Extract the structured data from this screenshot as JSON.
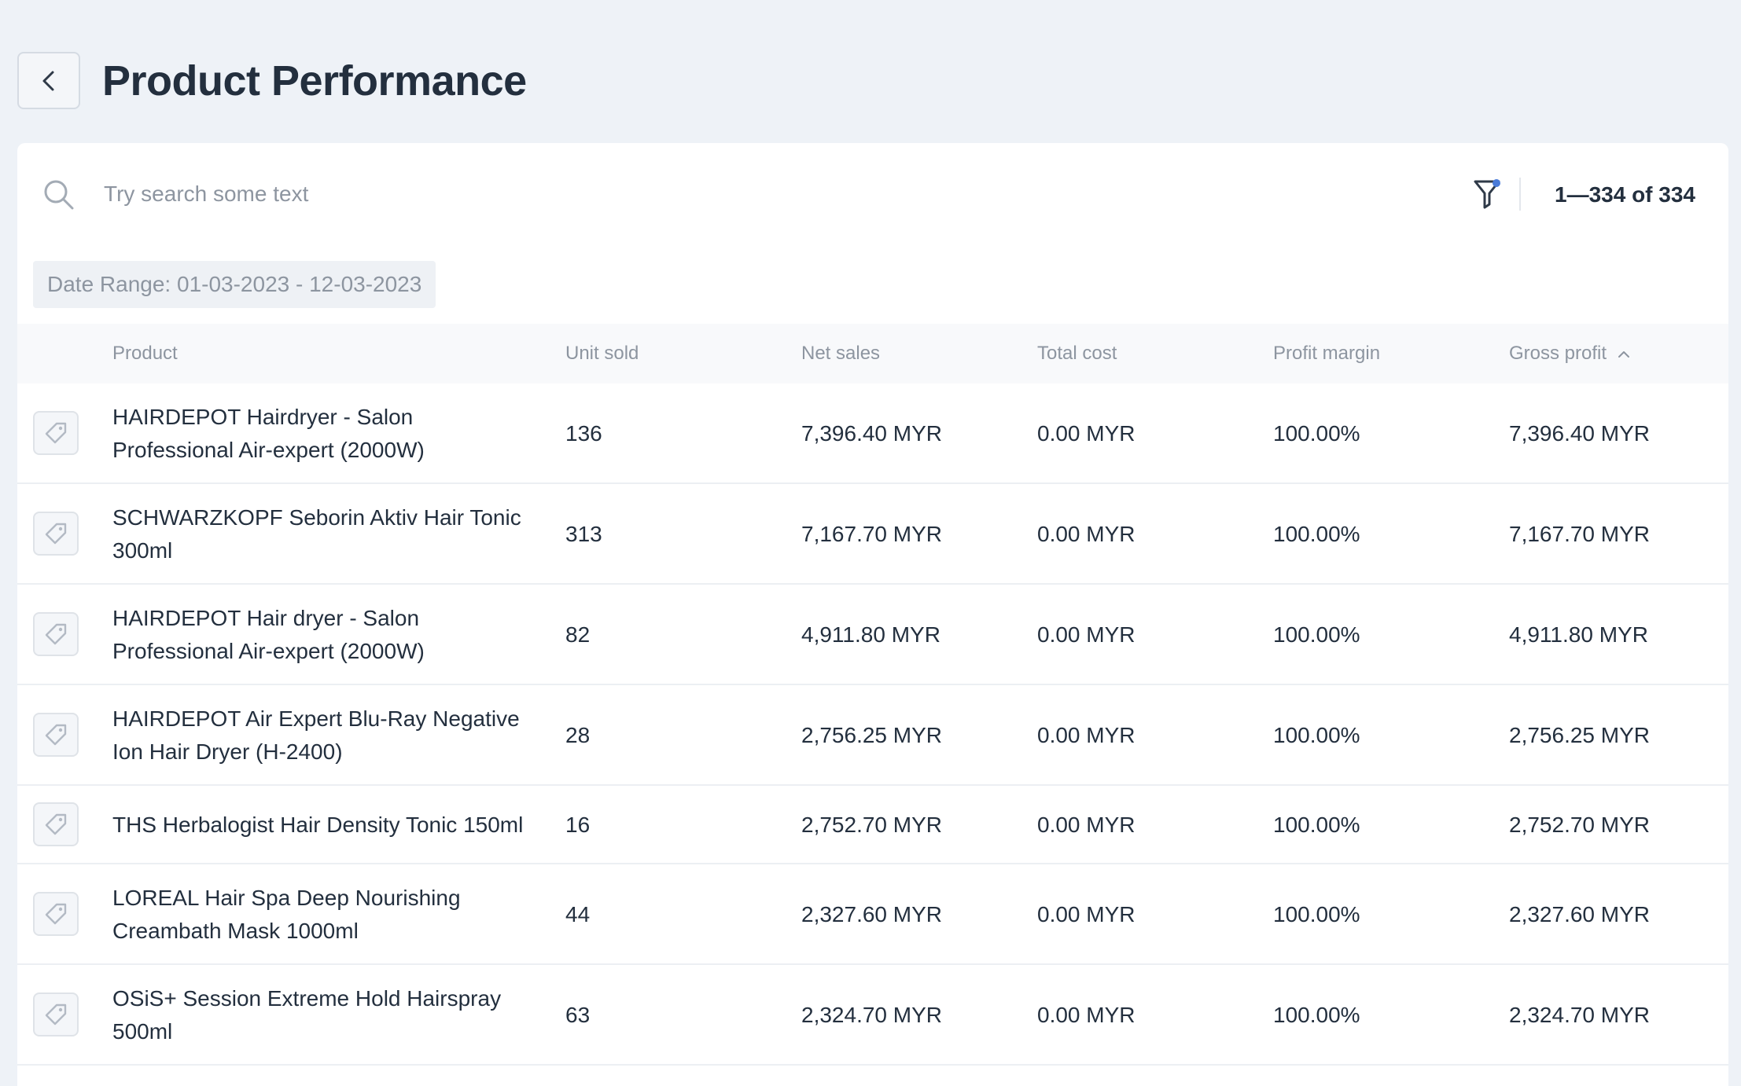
{
  "page": {
    "title": "Product Performance"
  },
  "search": {
    "placeholder": "Try search some text",
    "value": ""
  },
  "pagination": {
    "range_text": "1—334 of 334"
  },
  "filters": {
    "date_range_chip": "Date Range: 01-03-2023 - 12-03-2023",
    "filter_active": true
  },
  "table": {
    "headers": {
      "product": "Product",
      "unit_sold": "Unit sold",
      "net_sales": "Net sales",
      "total_cost": "Total cost",
      "profit_margin": "Profit margin",
      "gross_profit": "Gross profit"
    },
    "sort": {
      "column": "gross_profit",
      "direction": "ascending-indicator"
    },
    "rows": [
      {
        "product": "HAIRDEPOT Hairdryer - Salon Professional Air-expert (2000W)",
        "unit_sold": "136",
        "net_sales": "7,396.40 MYR",
        "total_cost": "0.00 MYR",
        "profit_margin": "100.00%",
        "gross_profit": "7,396.40 MYR"
      },
      {
        "product": "SCHWARZKOPF Seborin Aktiv Hair Tonic 300ml",
        "unit_sold": "313",
        "net_sales": "7,167.70 MYR",
        "total_cost": "0.00 MYR",
        "profit_margin": "100.00%",
        "gross_profit": "7,167.70 MYR"
      },
      {
        "product": "HAIRDEPOT Hair dryer - Salon Professional Air-expert (2000W)",
        "unit_sold": "82",
        "net_sales": "4,911.80 MYR",
        "total_cost": "0.00 MYR",
        "profit_margin": "100.00%",
        "gross_profit": "4,911.80 MYR"
      },
      {
        "product": "HAIRDEPOT Air Expert Blu-Ray Negative Ion Hair Dryer (H-2400)",
        "unit_sold": "28",
        "net_sales": "2,756.25 MYR",
        "total_cost": "0.00 MYR",
        "profit_margin": "100.00%",
        "gross_profit": "2,756.25 MYR"
      },
      {
        "product": "THS Herbalogist Hair Density Tonic 150ml",
        "unit_sold": "16",
        "net_sales": "2,752.70 MYR",
        "total_cost": "0.00 MYR",
        "profit_margin": "100.00%",
        "gross_profit": "2,752.70 MYR"
      },
      {
        "product": "LOREAL Hair Spa Deep Nourishing Creambath Mask 1000ml",
        "unit_sold": "44",
        "net_sales": "2,327.60 MYR",
        "total_cost": "0.00 MYR",
        "profit_margin": "100.00%",
        "gross_profit": "2,327.60 MYR"
      },
      {
        "product": "OSiS+ Session Extreme Hold Hairspray 500ml",
        "unit_sold": "63",
        "net_sales": "2,324.70 MYR",
        "total_cost": "0.00 MYR",
        "profit_margin": "100.00%",
        "gross_profit": "2,324.70 MYR"
      }
    ]
  },
  "icons": {
    "back": "chevron-left-icon",
    "search": "search-icon",
    "filter": "filter-icon",
    "sort": "chevron-up-icon",
    "row": "price-tag-icon"
  },
  "colors": {
    "background": "#eef2f7",
    "card": "#ffffff",
    "title": "#232f3e",
    "muted_text": "#8d95a0",
    "filter_dot": "#4a7bd8"
  }
}
